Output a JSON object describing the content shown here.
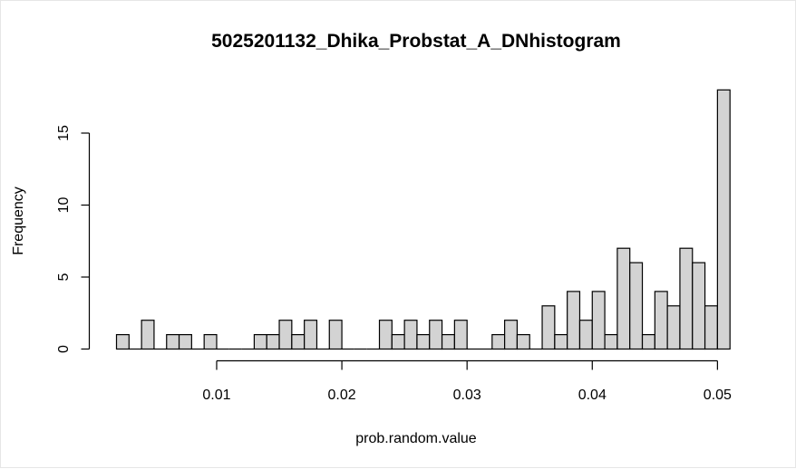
{
  "chart_data": {
    "type": "bar",
    "title": "5025201132_Dhika_Probstat_A_DNhistogram",
    "xlabel": "prob.random.value",
    "ylabel": "Frequency",
    "bin_width": 0.001,
    "bin_start": 0.002,
    "xlim": [
      0.002,
      0.05
    ],
    "ylim": [
      0,
      18
    ],
    "x_ticks": [
      0.01,
      0.02,
      0.03,
      0.04,
      0.05
    ],
    "x_tick_labels": [
      "0.01",
      "0.02",
      "0.03",
      "0.04",
      "0.05"
    ],
    "y_ticks": [
      0,
      5,
      10,
      15
    ],
    "y_tick_labels": [
      "0",
      "5",
      "10",
      "15"
    ],
    "bar_fill": "#d3d3d3",
    "values": [
      1,
      0,
      2,
      0,
      1,
      1,
      0,
      1,
      0,
      0,
      0,
      1,
      1,
      2,
      1,
      2,
      0,
      2,
      0,
      0,
      0,
      2,
      1,
      2,
      1,
      2,
      1,
      2,
      0,
      0,
      1,
      2,
      1,
      0,
      3,
      1,
      4,
      2,
      4,
      1,
      7,
      6,
      1,
      4,
      3,
      7,
      6,
      3,
      18
    ]
  }
}
